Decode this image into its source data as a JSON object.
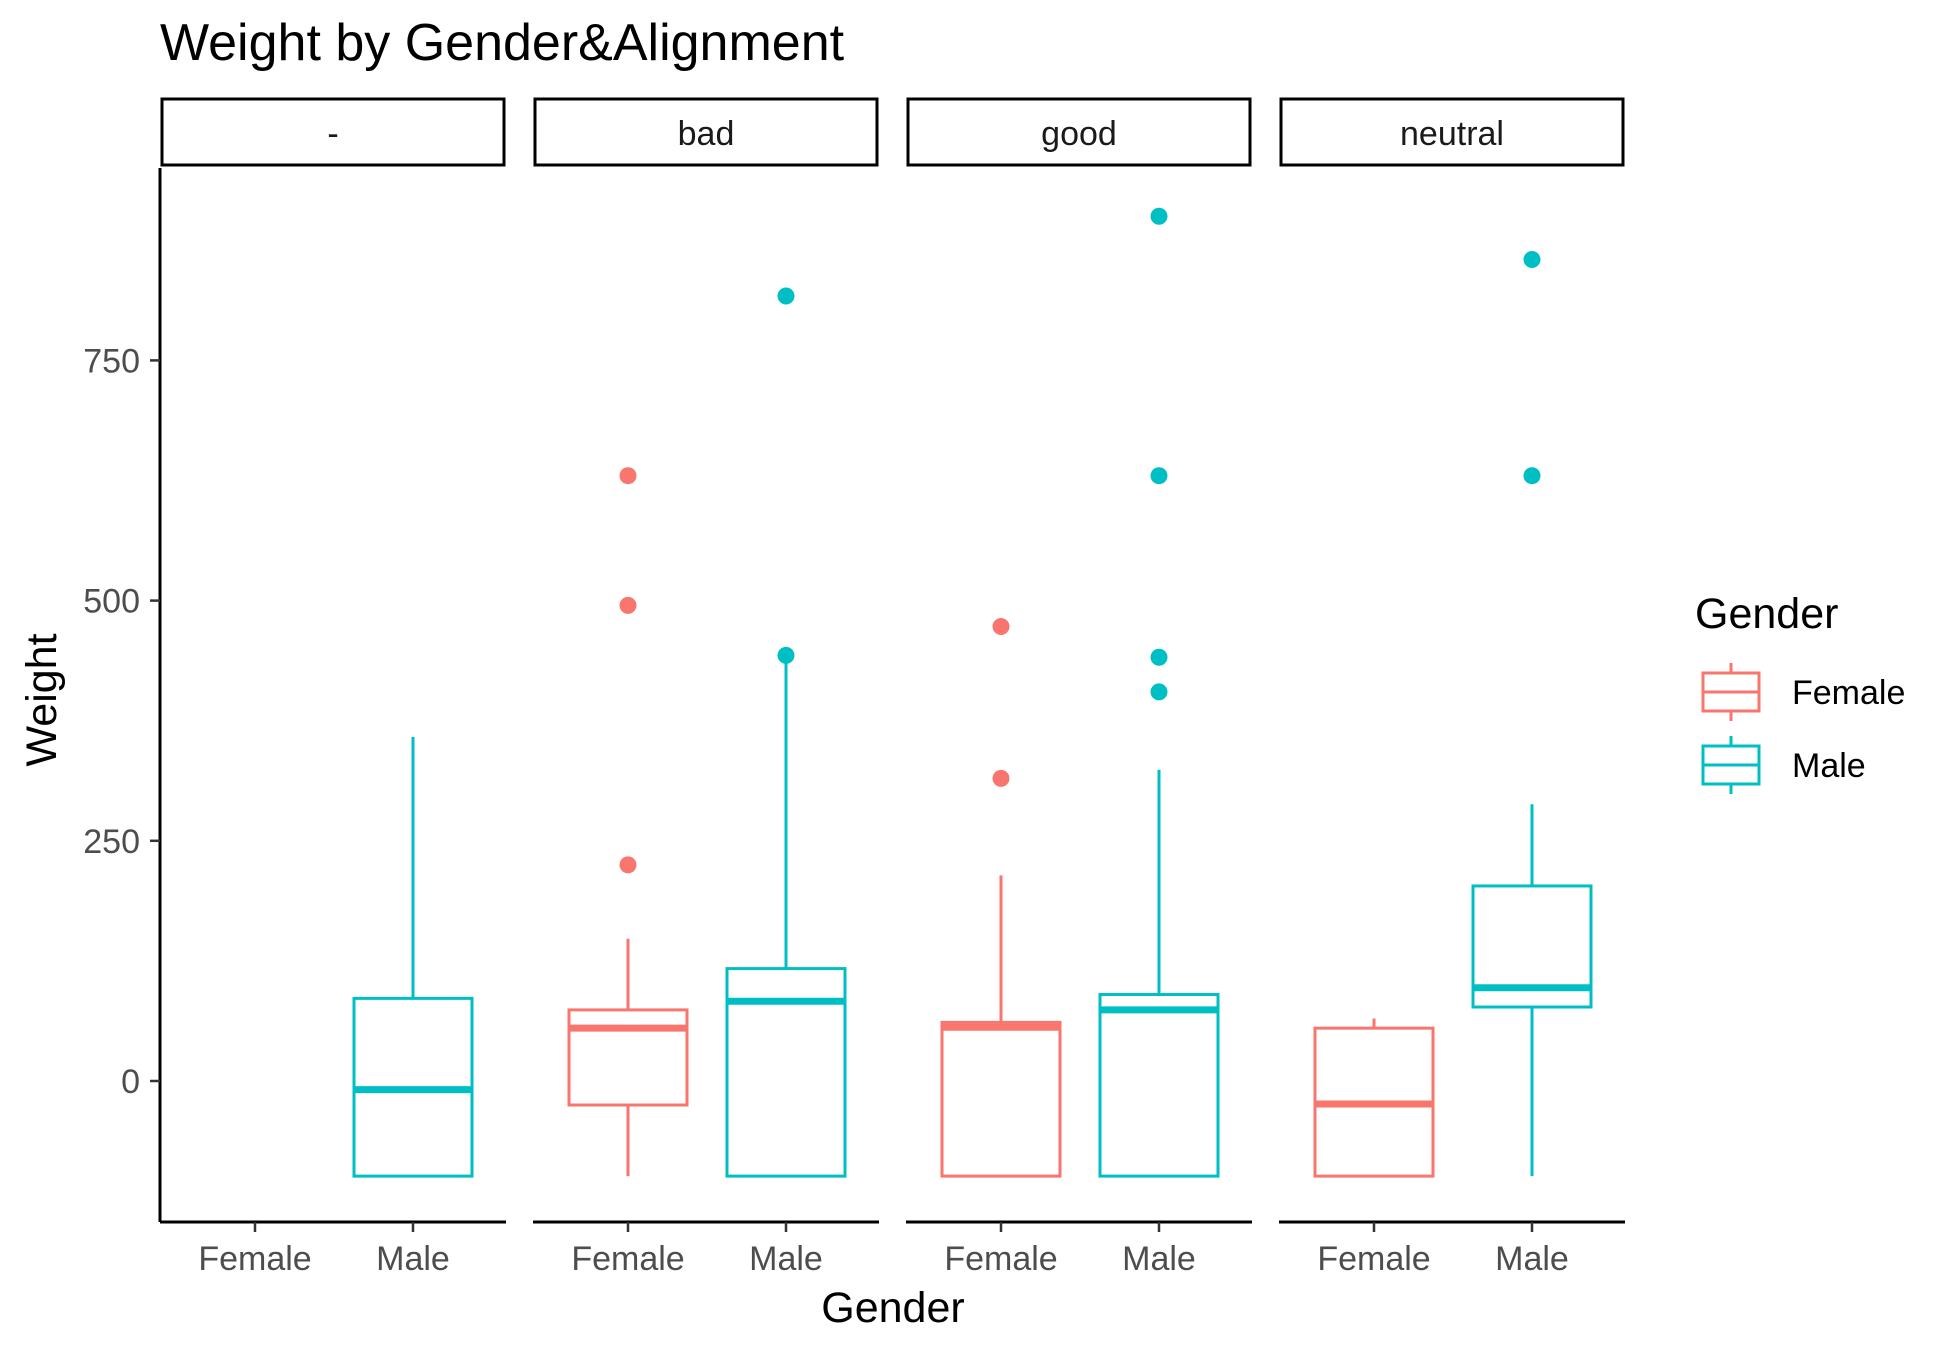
{
  "chart_data": {
    "type": "boxplot",
    "title": "Weight by Gender&Alignment",
    "xlabel": "Gender",
    "ylabel": "Weight",
    "ylim": [
      -150,
      950
    ],
    "yticks": [
      0,
      250,
      500,
      750
    ],
    "facets": [
      "-",
      "bad",
      "good",
      "neutral"
    ],
    "categories": [
      "Female",
      "Male"
    ],
    "colors": {
      "Female": "#F8766D",
      "Male": "#00BFC4"
    },
    "legend": {
      "title": "Gender",
      "position": "right",
      "entries": [
        "Female",
        "Male"
      ]
    },
    "grid": false,
    "boxes": [
      {
        "facet": "-",
        "gender": "Male",
        "min": -99,
        "q1": -99,
        "median": -9,
        "q3": 86,
        "max": 358,
        "outliers": []
      },
      {
        "facet": "bad",
        "gender": "Female",
        "min": -99,
        "q1": -25,
        "median": 55,
        "q3": 74,
        "max": 148,
        "outliers": [
          225,
          495,
          630
        ]
      },
      {
        "facet": "bad",
        "gender": "Male",
        "min": -99,
        "q1": -99,
        "median": 83,
        "q3": 117,
        "max": 443,
        "outliers": [
          443,
          817
        ]
      },
      {
        "facet": "good",
        "gender": "Female",
        "min": -99,
        "q1": -99,
        "median": 56,
        "q3": 61,
        "max": 214,
        "outliers": [
          315,
          473
        ]
      },
      {
        "facet": "good",
        "gender": "Male",
        "min": -99,
        "q1": -99,
        "median": 74,
        "q3": 90,
        "max": 324,
        "outliers": [
          405,
          441,
          630,
          900
        ]
      },
      {
        "facet": "neutral",
        "gender": "Female",
        "min": -99,
        "q1": -99,
        "median": -24,
        "q3": 55,
        "max": 65,
        "outliers": []
      },
      {
        "facet": "neutral",
        "gender": "Male",
        "min": -99,
        "q1": 77,
        "median": 97,
        "q3": 203,
        "max": 288,
        "outliers": [
          630,
          855
        ]
      }
    ]
  }
}
